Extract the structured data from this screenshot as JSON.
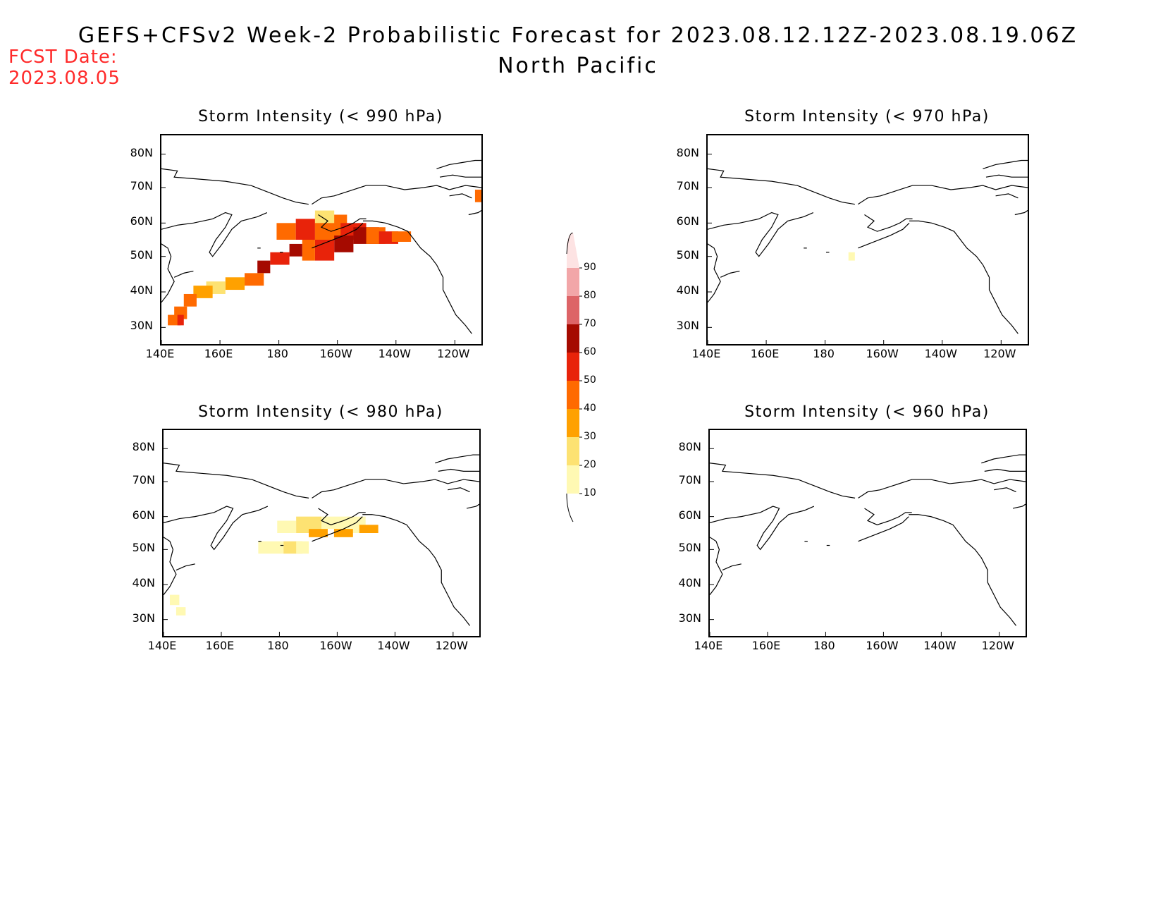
{
  "header": {
    "title": "GEFS+CFSv2 Week-2 Probabilistic Forecast for 2023.08.12.12Z-2023.08.19.06Z",
    "subtitle": "North Pacific",
    "fcst_label": "FCST Date:",
    "fcst_date": "2023.08.05"
  },
  "axes": {
    "lat_labels": [
      "80N",
      "70N",
      "60N",
      "50N",
      "40N",
      "30N"
    ],
    "lon_labels": [
      "140E",
      "160E",
      "180",
      "160W",
      "140W",
      "120W"
    ]
  },
  "panels": [
    {
      "id": "p990",
      "title": "Storm Intensity (< 990 hPa)"
    },
    {
      "id": "p970",
      "title": "Storm Intensity (< 970 hPa)"
    },
    {
      "id": "p980",
      "title": "Storm Intensity (< 980 hPa)"
    },
    {
      "id": "p960",
      "title": "Storm Intensity (< 960 hPa)"
    }
  ],
  "colorbar": {
    "levels": [
      "10",
      "20",
      "30",
      "40",
      "50",
      "60",
      "70",
      "80",
      "90"
    ],
    "colors": [
      "#fff9b3",
      "#fde272",
      "#ffa100",
      "#ff6a00",
      "#e8230a",
      "#a50a00",
      "#dd6467",
      "#f2a6a8",
      "#fde3e3"
    ]
  }
}
